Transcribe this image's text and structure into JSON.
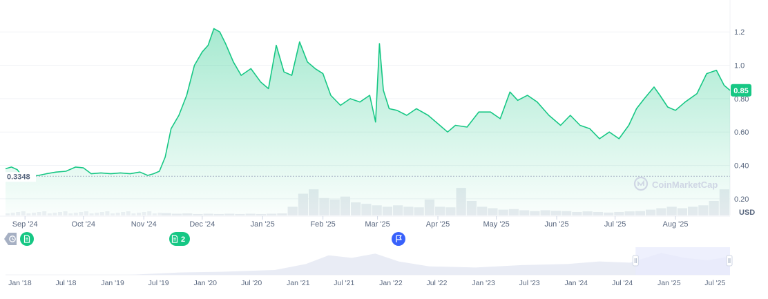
{
  "watermark": "CoinMarketCap",
  "colors": {
    "line": "#16c784",
    "area_top": "#16c784",
    "below_line": "#ea3943",
    "current_badge": "#16c784",
    "baseline_label": "#58667e",
    "event_blue": "#3861fb",
    "navigator_fill": "#e9ecf5",
    "navigator_window": "#e8ebfc"
  },
  "markers": [
    {
      "icon": "history-icon",
      "label": "",
      "color": "#a6b0c3"
    },
    {
      "icon": "document-icon",
      "label": "",
      "color": "#16c784"
    },
    {
      "icon": "document-icon",
      "label": "2",
      "color": "#16c784"
    },
    {
      "icon": "flag-icon",
      "label": "",
      "color": "#3861fb"
    }
  ],
  "chart_data": {
    "type": "area",
    "currency_label": "USD",
    "current_value_label": "0.85",
    "baseline_value_label": "0.3348",
    "baseline_value": 0.3348,
    "ylim": [
      0.1,
      1.35
    ],
    "y_ticks": [
      {
        "label": "1.2",
        "value": 1.2
      },
      {
        "label": "1.0",
        "value": 1.0
      },
      {
        "label": "0.80",
        "value": 0.8
      },
      {
        "label": "0.60",
        "value": 0.6
      },
      {
        "label": "0.40",
        "value": 0.4
      },
      {
        "label": "0.20",
        "value": 0.2
      }
    ],
    "x_ticks": [
      {
        "label": "Sep '24",
        "date": "2024-09-01"
      },
      {
        "label": "Oct '24",
        "date": "2024-10-01"
      },
      {
        "label": "Nov '24",
        "date": "2024-11-01"
      },
      {
        "label": "Dec '24",
        "date": "2024-12-01"
      },
      {
        "label": "Jan '25",
        "date": "2025-01-01"
      },
      {
        "label": "Feb '25",
        "date": "2025-02-01"
      },
      {
        "label": "Mar '25",
        "date": "2025-03-01"
      },
      {
        "label": "Apr '25",
        "date": "2025-04-01"
      },
      {
        "label": "May '25",
        "date": "2025-05-01"
      },
      {
        "label": "Jun '25",
        "date": "2025-06-01"
      },
      {
        "label": "Jul '25",
        "date": "2025-07-01"
      },
      {
        "label": "Aug '25",
        "date": "2025-08-01"
      }
    ],
    "x_range": [
      "2024-08-22",
      "2025-08-29"
    ],
    "series": [
      {
        "points": [
          [
            "2024-08-22",
            0.38
          ],
          [
            "2024-08-25",
            0.39
          ],
          [
            "2024-08-28",
            0.375
          ],
          [
            "2024-08-31",
            0.33
          ],
          [
            "2024-09-04",
            0.335
          ],
          [
            "2024-09-08",
            0.34
          ],
          [
            "2024-09-12",
            0.35
          ],
          [
            "2024-09-17",
            0.36
          ],
          [
            "2024-09-22",
            0.365
          ],
          [
            "2024-09-27",
            0.39
          ],
          [
            "2024-10-01",
            0.385
          ],
          [
            "2024-10-05",
            0.35
          ],
          [
            "2024-10-10",
            0.355
          ],
          [
            "2024-10-15",
            0.35
          ],
          [
            "2024-10-20",
            0.355
          ],
          [
            "2024-10-25",
            0.35
          ],
          [
            "2024-10-30",
            0.36
          ],
          [
            "2024-11-03",
            0.34
          ],
          [
            "2024-11-06",
            0.35
          ],
          [
            "2024-11-09",
            0.365
          ],
          [
            "2024-11-12",
            0.45
          ],
          [
            "2024-11-15",
            0.62
          ],
          [
            "2024-11-19",
            0.7
          ],
          [
            "2024-11-23",
            0.82
          ],
          [
            "2024-11-27",
            1.0
          ],
          [
            "2024-12-01",
            1.08
          ],
          [
            "2024-12-04",
            1.12
          ],
          [
            "2024-12-07",
            1.22
          ],
          [
            "2024-12-10",
            1.2
          ],
          [
            "2024-12-13",
            1.13
          ],
          [
            "2024-12-17",
            1.02
          ],
          [
            "2024-12-21",
            0.94
          ],
          [
            "2024-12-26",
            0.98
          ],
          [
            "2024-12-31",
            0.9
          ],
          [
            "2025-01-04",
            0.86
          ],
          [
            "2025-01-08",
            1.12
          ],
          [
            "2025-01-12",
            0.96
          ],
          [
            "2025-01-16",
            0.94
          ],
          [
            "2025-01-20",
            1.14
          ],
          [
            "2025-01-24",
            1.02
          ],
          [
            "2025-01-28",
            0.98
          ],
          [
            "2025-02-01",
            0.95
          ],
          [
            "2025-02-05",
            0.82
          ],
          [
            "2025-02-10",
            0.76
          ],
          [
            "2025-02-15",
            0.8
          ],
          [
            "2025-02-20",
            0.78
          ],
          [
            "2025-02-25",
            0.82
          ],
          [
            "2025-02-28",
            0.66
          ],
          [
            "2025-03-02",
            1.13
          ],
          [
            "2025-03-04",
            0.85
          ],
          [
            "2025-03-07",
            0.74
          ],
          [
            "2025-03-11",
            0.73
          ],
          [
            "2025-03-16",
            0.7
          ],
          [
            "2025-03-21",
            0.74
          ],
          [
            "2025-03-27",
            0.7
          ],
          [
            "2025-04-02",
            0.64
          ],
          [
            "2025-04-06",
            0.6
          ],
          [
            "2025-04-10",
            0.64
          ],
          [
            "2025-04-16",
            0.63
          ],
          [
            "2025-04-22",
            0.72
          ],
          [
            "2025-04-28",
            0.72
          ],
          [
            "2025-05-03",
            0.68
          ],
          [
            "2025-05-08",
            0.84
          ],
          [
            "2025-05-12",
            0.79
          ],
          [
            "2025-05-17",
            0.82
          ],
          [
            "2025-05-22",
            0.78
          ],
          [
            "2025-05-28",
            0.7
          ],
          [
            "2025-06-03",
            0.64
          ],
          [
            "2025-06-08",
            0.7
          ],
          [
            "2025-06-13",
            0.64
          ],
          [
            "2025-06-18",
            0.62
          ],
          [
            "2025-06-23",
            0.56
          ],
          [
            "2025-06-28",
            0.6
          ],
          [
            "2025-07-03",
            0.56
          ],
          [
            "2025-07-08",
            0.64
          ],
          [
            "2025-07-12",
            0.74
          ],
          [
            "2025-07-16",
            0.8
          ],
          [
            "2025-07-21",
            0.87
          ],
          [
            "2025-07-24",
            0.82
          ],
          [
            "2025-07-28",
            0.75
          ],
          [
            "2025-08-01",
            0.73
          ],
          [
            "2025-08-06",
            0.78
          ],
          [
            "2025-08-12",
            0.83
          ],
          [
            "2025-08-17",
            0.95
          ],
          [
            "2025-08-22",
            0.97
          ],
          [
            "2025-08-26",
            0.88
          ],
          [
            "2025-08-29",
            0.85
          ]
        ]
      }
    ],
    "volume_hint": [
      0.08,
      0.06,
      0.07,
      0.05,
      0.06,
      0.05,
      0.06,
      0.05,
      0.06,
      0.05,
      0.06,
      0.07,
      0.3,
      0.75,
      0.9,
      0.6,
      0.55,
      0.65,
      0.45,
      0.4,
      0.35,
      0.3,
      0.35,
      0.3,
      0.28,
      0.55,
      0.3,
      0.28,
      0.95,
      0.5,
      0.3,
      0.25,
      0.2,
      0.22,
      0.18,
      0.15,
      0.18,
      0.16,
      0.15,
      0.12,
      0.14,
      0.12,
      0.1,
      0.12,
      0.14,
      0.15,
      0.2,
      0.25,
      0.3,
      0.25,
      0.3,
      0.35,
      0.5,
      0.9
    ],
    "navigator": {
      "x_ticks": [
        {
          "label": "Jan '18",
          "date": "2018-01-01"
        },
        {
          "label": "Jul '18",
          "date": "2018-07-01"
        },
        {
          "label": "Jan '19",
          "date": "2019-01-01"
        },
        {
          "label": "Jul '19",
          "date": "2019-07-01"
        },
        {
          "label": "Jan '20",
          "date": "2020-01-01"
        },
        {
          "label": "Jul '20",
          "date": "2020-07-01"
        },
        {
          "label": "Jan '21",
          "date": "2021-01-01"
        },
        {
          "label": "Jul '21",
          "date": "2021-07-01"
        },
        {
          "label": "Jan '22",
          "date": "2022-01-01"
        },
        {
          "label": "Jul '22",
          "date": "2022-07-01"
        },
        {
          "label": "Jan '23",
          "date": "2023-01-01"
        },
        {
          "label": "Jul '23",
          "date": "2023-07-01"
        },
        {
          "label": "Jan '24",
          "date": "2024-01-01"
        },
        {
          "label": "Jul '24",
          "date": "2024-07-01"
        },
        {
          "label": "Jan '25",
          "date": "2025-01-01"
        },
        {
          "label": "Jul '25",
          "date": "2025-07-01"
        }
      ],
      "x_range": [
        "2017-11-05",
        "2025-08-29"
      ],
      "selected_range": [
        "2024-08-22",
        "2025-08-29"
      ],
      "levels": [
        [
          "2017-11-05",
          0.0
        ],
        [
          "2019-03-01",
          0.0
        ],
        [
          "2019-10-01",
          0.04
        ],
        [
          "2020-03-01",
          0.05
        ],
        [
          "2020-10-01",
          0.08
        ],
        [
          "2021-02-01",
          0.18
        ],
        [
          "2021-05-01",
          0.32
        ],
        [
          "2021-08-01",
          0.28
        ],
        [
          "2021-11-01",
          0.35
        ],
        [
          "2022-02-01",
          0.22
        ],
        [
          "2022-06-01",
          0.14
        ],
        [
          "2022-12-01",
          0.12
        ],
        [
          "2023-06-01",
          0.16
        ],
        [
          "2023-12-01",
          0.18
        ],
        [
          "2024-04-01",
          0.22
        ],
        [
          "2024-08-01",
          0.2
        ],
        [
          "2024-12-01",
          0.36
        ],
        [
          "2025-03-01",
          0.28
        ],
        [
          "2025-06-01",
          0.24
        ],
        [
          "2025-08-29",
          0.3
        ]
      ]
    }
  }
}
